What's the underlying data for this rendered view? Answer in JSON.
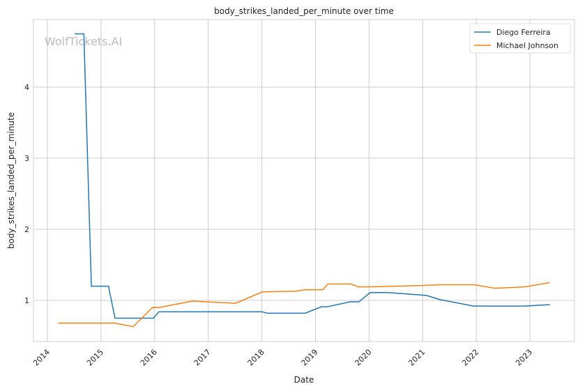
{
  "chart_data": {
    "type": "line",
    "title": "body_strikes_landed_per_minute over time",
    "xlabel": "Date",
    "ylabel": "body_strikes_landed_per_minute",
    "watermark": "WolfTickets.AI",
    "xlim": [
      2013.75,
      2024.0
    ],
    "ylim": [
      0.42,
      4.95
    ],
    "xticks": [
      2014,
      2015,
      2016,
      2017,
      2018,
      2019,
      2020,
      2021,
      2022,
      2023
    ],
    "yticks": [
      1,
      2,
      3,
      4
    ],
    "grid": true,
    "legend_position": "top-right",
    "series": [
      {
        "name": "Diego Ferreira",
        "color": "#1f77b4",
        "points": [
          [
            2014.51,
            4.75
          ],
          [
            2014.68,
            4.75
          ],
          [
            2014.82,
            1.2
          ],
          [
            2015.14,
            1.2
          ],
          [
            2015.26,
            0.75
          ],
          [
            2015.98,
            0.75
          ],
          [
            2016.08,
            0.84
          ],
          [
            2018.0,
            0.84
          ],
          [
            2018.1,
            0.82
          ],
          [
            2018.81,
            0.82
          ],
          [
            2019.11,
            0.91
          ],
          [
            2019.22,
            0.91
          ],
          [
            2019.65,
            0.98
          ],
          [
            2019.81,
            0.98
          ],
          [
            2020.02,
            1.11
          ],
          [
            2020.35,
            1.11
          ],
          [
            2021.07,
            1.07
          ],
          [
            2021.33,
            1.01
          ],
          [
            2021.95,
            0.92
          ],
          [
            2022.9,
            0.92
          ],
          [
            2023.37,
            0.94
          ]
        ]
      },
      {
        "name": "Michael Johnson",
        "color": "#ff7f0e",
        "points": [
          [
            2014.2,
            0.68
          ],
          [
            2015.26,
            0.68
          ],
          [
            2015.6,
            0.63
          ],
          [
            2015.96,
            0.9
          ],
          [
            2016.08,
            0.9
          ],
          [
            2016.7,
            0.99
          ],
          [
            2017.51,
            0.96
          ],
          [
            2018.01,
            1.12
          ],
          [
            2018.64,
            1.13
          ],
          [
            2018.8,
            1.15
          ],
          [
            2019.14,
            1.15
          ],
          [
            2019.23,
            1.23
          ],
          [
            2019.67,
            1.23
          ],
          [
            2019.8,
            1.19
          ],
          [
            2020.0,
            1.19
          ],
          [
            2021.0,
            1.21
          ],
          [
            2021.32,
            1.22
          ],
          [
            2021.96,
            1.22
          ],
          [
            2022.35,
            1.17
          ],
          [
            2022.9,
            1.19
          ],
          [
            2023.37,
            1.25
          ]
        ]
      }
    ]
  }
}
